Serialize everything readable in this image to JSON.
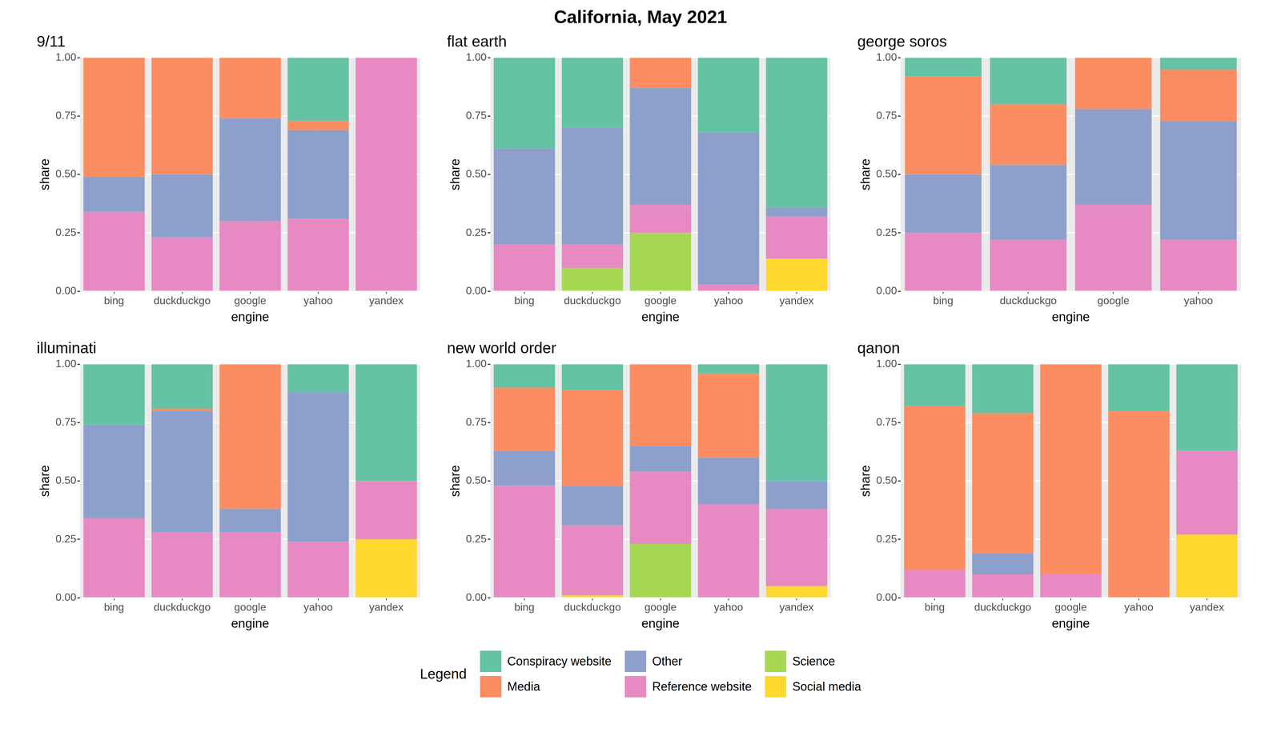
{
  "title": "California, May 2021",
  "legend_title": "Legend",
  "legend": "bottom",
  "chart_data": [
    {
      "type": "bar",
      "title": "9/11",
      "xlabel": "engine",
      "ylabel": "share",
      "stacked": true,
      "grid": true,
      "categories": [
        "bing",
        "duckduckgo",
        "google",
        "yahoo",
        "yandex"
      ],
      "ylim": [
        0,
        1
      ],
      "yticks": [
        {
          "value": 0,
          "label": "0.00"
        },
        0.25,
        {
          "value": 0.5,
          "label": "0.50"
        },
        0.75,
        {
          "value": 1,
          "label": "1.00"
        }
      ],
      "series": [
        {
          "name": "Conspiracy website",
          "color": "#66c2a5",
          "values": [
            0,
            0,
            0,
            0.27,
            0
          ]
        },
        {
          "name": "Media",
          "color": "#fc8d62",
          "values": [
            0.51,
            0.5,
            0.26,
            0.04,
            0
          ]
        },
        {
          "name": "Other",
          "color": "#8da0cb",
          "values": [
            0.15,
            0.27,
            0.44,
            0.38,
            0
          ]
        },
        {
          "name": "Reference website",
          "color": "#e78ac3",
          "values": [
            0.34,
            0.23,
            0.3,
            0.31,
            1.0
          ]
        }
      ]
    },
    {
      "type": "bar",
      "title": "flat earth",
      "xlabel": "engine",
      "ylabel": "share",
      "stacked": true,
      "grid": true,
      "categories": [
        "bing",
        "duckduckgo",
        "google",
        "yahoo",
        "yandex"
      ],
      "ylim": [
        0,
        1
      ],
      "yticks": [
        {
          "value": 0,
          "label": "0.00"
        },
        0.25,
        {
          "value": 0.5,
          "label": "0.50"
        },
        0.75,
        {
          "value": 1,
          "label": "1.00"
        }
      ],
      "series": [
        {
          "name": "Conspiracy website",
          "color": "#66c2a5",
          "values": [
            0.39,
            0.3,
            0,
            0.32,
            0.64
          ]
        },
        {
          "name": "Media",
          "color": "#fc8d62",
          "values": [
            0,
            0,
            0.13,
            0,
            0
          ]
        },
        {
          "name": "Other",
          "color": "#8da0cb",
          "values": [
            0.41,
            0.5,
            0.5,
            0.65,
            0.04
          ]
        },
        {
          "name": "Reference website",
          "color": "#e78ac3",
          "values": [
            0.2,
            0.1,
            0.12,
            0.03,
            0.18
          ]
        },
        {
          "name": "Science",
          "color": "#a6d854",
          "values": [
            0,
            0.1,
            0.25,
            0,
            0
          ]
        },
        {
          "name": "Social media",
          "color": "#ffd92f",
          "values": [
            0,
            0,
            0,
            0,
            0.14
          ]
        }
      ]
    },
    {
      "type": "bar",
      "title": "george soros",
      "xlabel": "engine",
      "ylabel": "share",
      "stacked": true,
      "grid": true,
      "categories": [
        "bing",
        "duckduckgo",
        "google",
        "yahoo"
      ],
      "ylim": [
        0,
        1
      ],
      "yticks": [
        {
          "value": 0,
          "label": "0.00"
        },
        0.25,
        {
          "value": 0.5,
          "label": "0.50"
        },
        0.75,
        {
          "value": 1,
          "label": "1.00"
        }
      ],
      "series": [
        {
          "name": "Conspiracy website",
          "color": "#66c2a5",
          "values": [
            0.08,
            0.2,
            0,
            0.05
          ]
        },
        {
          "name": "Media",
          "color": "#fc8d62",
          "values": [
            0.42,
            0.26,
            0.22,
            0.22
          ]
        },
        {
          "name": "Other",
          "color": "#8da0cb",
          "values": [
            0.25,
            0.32,
            0.41,
            0.51
          ]
        },
        {
          "name": "Reference website",
          "color": "#e78ac3",
          "values": [
            0.25,
            0.22,
            0.37,
            0.22
          ]
        }
      ]
    },
    {
      "type": "bar",
      "title": "illuminati",
      "xlabel": "engine",
      "ylabel": "share",
      "stacked": true,
      "grid": true,
      "categories": [
        "bing",
        "duckduckgo",
        "google",
        "yahoo",
        "yandex"
      ],
      "ylim": [
        0,
        1
      ],
      "yticks": [
        {
          "value": 0,
          "label": "0.00"
        },
        0.25,
        {
          "value": 0.5,
          "label": "0.50"
        },
        0.75,
        {
          "value": 1,
          "label": "1.00"
        }
      ],
      "series": [
        {
          "name": "Conspiracy website",
          "color": "#66c2a5",
          "values": [
            0.26,
            0.19,
            0,
            0.12,
            0.5
          ]
        },
        {
          "name": "Media",
          "color": "#fc8d62",
          "values": [
            0,
            0.01,
            0.62,
            0,
            0
          ]
        },
        {
          "name": "Other",
          "color": "#8da0cb",
          "values": [
            0.4,
            0.52,
            0.1,
            0.64,
            0
          ]
        },
        {
          "name": "Reference website",
          "color": "#e78ac3",
          "values": [
            0.34,
            0.28,
            0.28,
            0.24,
            0.25
          ]
        },
        {
          "name": "Social media",
          "color": "#ffd92f",
          "values": [
            0,
            0,
            0,
            0,
            0.25
          ]
        }
      ]
    },
    {
      "type": "bar",
      "title": "new world order",
      "xlabel": "engine",
      "ylabel": "share",
      "stacked": true,
      "grid": true,
      "categories": [
        "bing",
        "duckduckgo",
        "google",
        "yahoo",
        "yandex"
      ],
      "ylim": [
        0,
        1
      ],
      "yticks": [
        {
          "value": 0,
          "label": "0.00"
        },
        0.25,
        {
          "value": 0.5,
          "label": "0.50"
        },
        0.75,
        {
          "value": 1,
          "label": "1.00"
        }
      ],
      "series": [
        {
          "name": "Conspiracy website",
          "color": "#66c2a5",
          "values": [
            0.1,
            0.11,
            0,
            0.04,
            0.5
          ]
        },
        {
          "name": "Media",
          "color": "#fc8d62",
          "values": [
            0.27,
            0.41,
            0.35,
            0.36,
            0
          ]
        },
        {
          "name": "Other",
          "color": "#8da0cb",
          "values": [
            0.15,
            0.17,
            0.11,
            0.2,
            0.12
          ]
        },
        {
          "name": "Reference website",
          "color": "#e78ac3",
          "values": [
            0.48,
            0.3,
            0.31,
            0.4,
            0.33
          ]
        },
        {
          "name": "Science",
          "color": "#a6d854",
          "values": [
            0,
            0,
            0.23,
            0,
            0
          ]
        },
        {
          "name": "Social media",
          "color": "#ffd92f",
          "values": [
            0,
            0.01,
            0,
            0,
            0.05
          ]
        }
      ]
    },
    {
      "type": "bar",
      "title": "qanon",
      "xlabel": "engine",
      "ylabel": "share",
      "stacked": true,
      "grid": true,
      "categories": [
        "bing",
        "duckduckgo",
        "google",
        "yahoo",
        "yandex"
      ],
      "ylim": [
        0,
        1
      ],
      "yticks": [
        {
          "value": 0,
          "label": "0.00"
        },
        0.25,
        {
          "value": 0.5,
          "label": "0.50"
        },
        0.75,
        {
          "value": 1,
          "label": "1.00"
        }
      ],
      "series": [
        {
          "name": "Conspiracy website",
          "color": "#66c2a5",
          "values": [
            0.18,
            0.21,
            0,
            0.2,
            0.37
          ]
        },
        {
          "name": "Media",
          "color": "#fc8d62",
          "values": [
            0.7,
            0.6,
            0.9,
            0.8,
            0
          ]
        },
        {
          "name": "Other",
          "color": "#8da0cb",
          "values": [
            0,
            0.09,
            0,
            0,
            0
          ]
        },
        {
          "name": "Reference website",
          "color": "#e78ac3",
          "values": [
            0.12,
            0.1,
            0.1,
            0,
            0.36
          ]
        },
        {
          "name": "Social media",
          "color": "#ffd92f",
          "values": [
            0,
            0,
            0,
            0,
            0.27
          ]
        }
      ]
    }
  ]
}
